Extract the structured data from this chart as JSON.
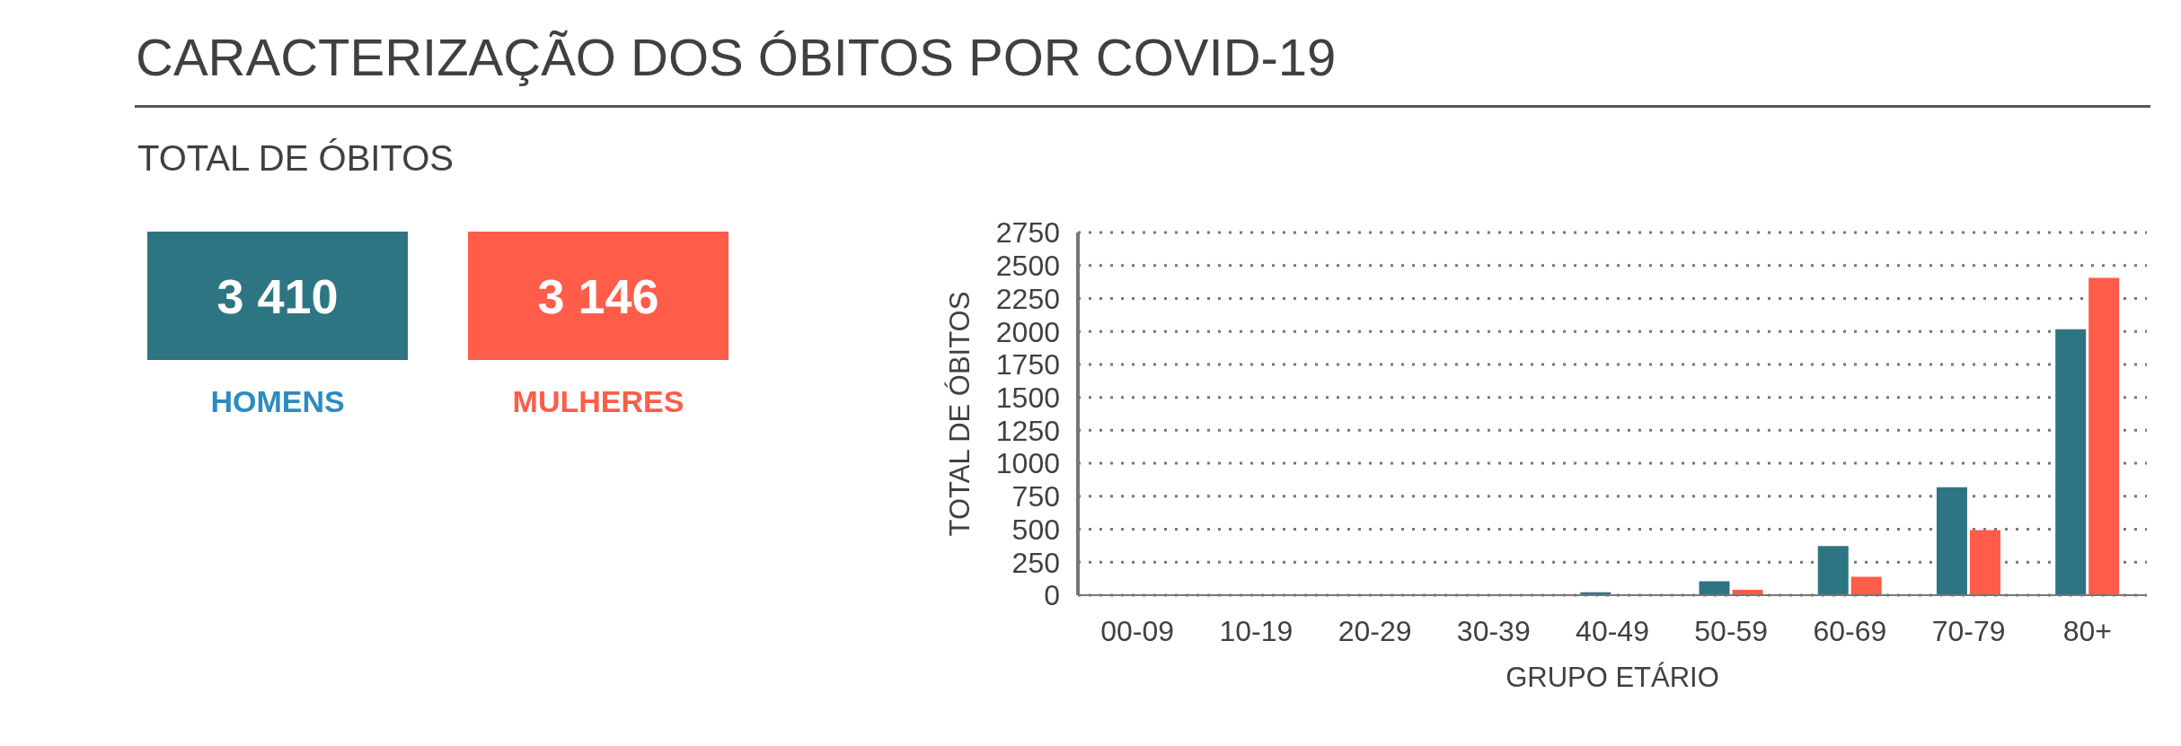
{
  "chart_data": [
    {
      "type": "other",
      "title": "CARACTERIZAÇÃO DOS ÓBITOS POR COVID-19",
      "subtitle": "TOTAL DE ÓBITOS",
      "annotations": [
        "3 410",
        "HOMENS",
        "3 146",
        "MULHERES"
      ],
      "colors": [
        "#2e7584",
        "#ff5c4a"
      ]
    },
    {
      "type": "bar",
      "categories": [
        "00-09",
        "10-19",
        "20-29",
        "30-39",
        "40-49",
        "50-59",
        "60-69",
        "70-79",
        "80+"
      ],
      "series": [
        {
          "color": "#2e7584",
          "values": [
            0,
            0,
            0,
            0,
            22,
            105,
            372,
            819,
            2016
          ]
        },
        {
          "color": "#ff5c4a",
          "values": [
            0,
            0,
            0,
            0,
            null,
            40,
            140,
            493,
            2407
          ]
        }
      ],
      "xlabel": "GRUPO ETÁRIO",
      "ylabel": "TOTAL DE ÓBITOS",
      "ylim": [
        0,
        2750
      ],
      "yticks": [
        0,
        250,
        500,
        750,
        1000,
        1250,
        1500,
        1750,
        2000,
        2250,
        2500,
        2750
      ],
      "grid": "y",
      "legend": false
    }
  ]
}
